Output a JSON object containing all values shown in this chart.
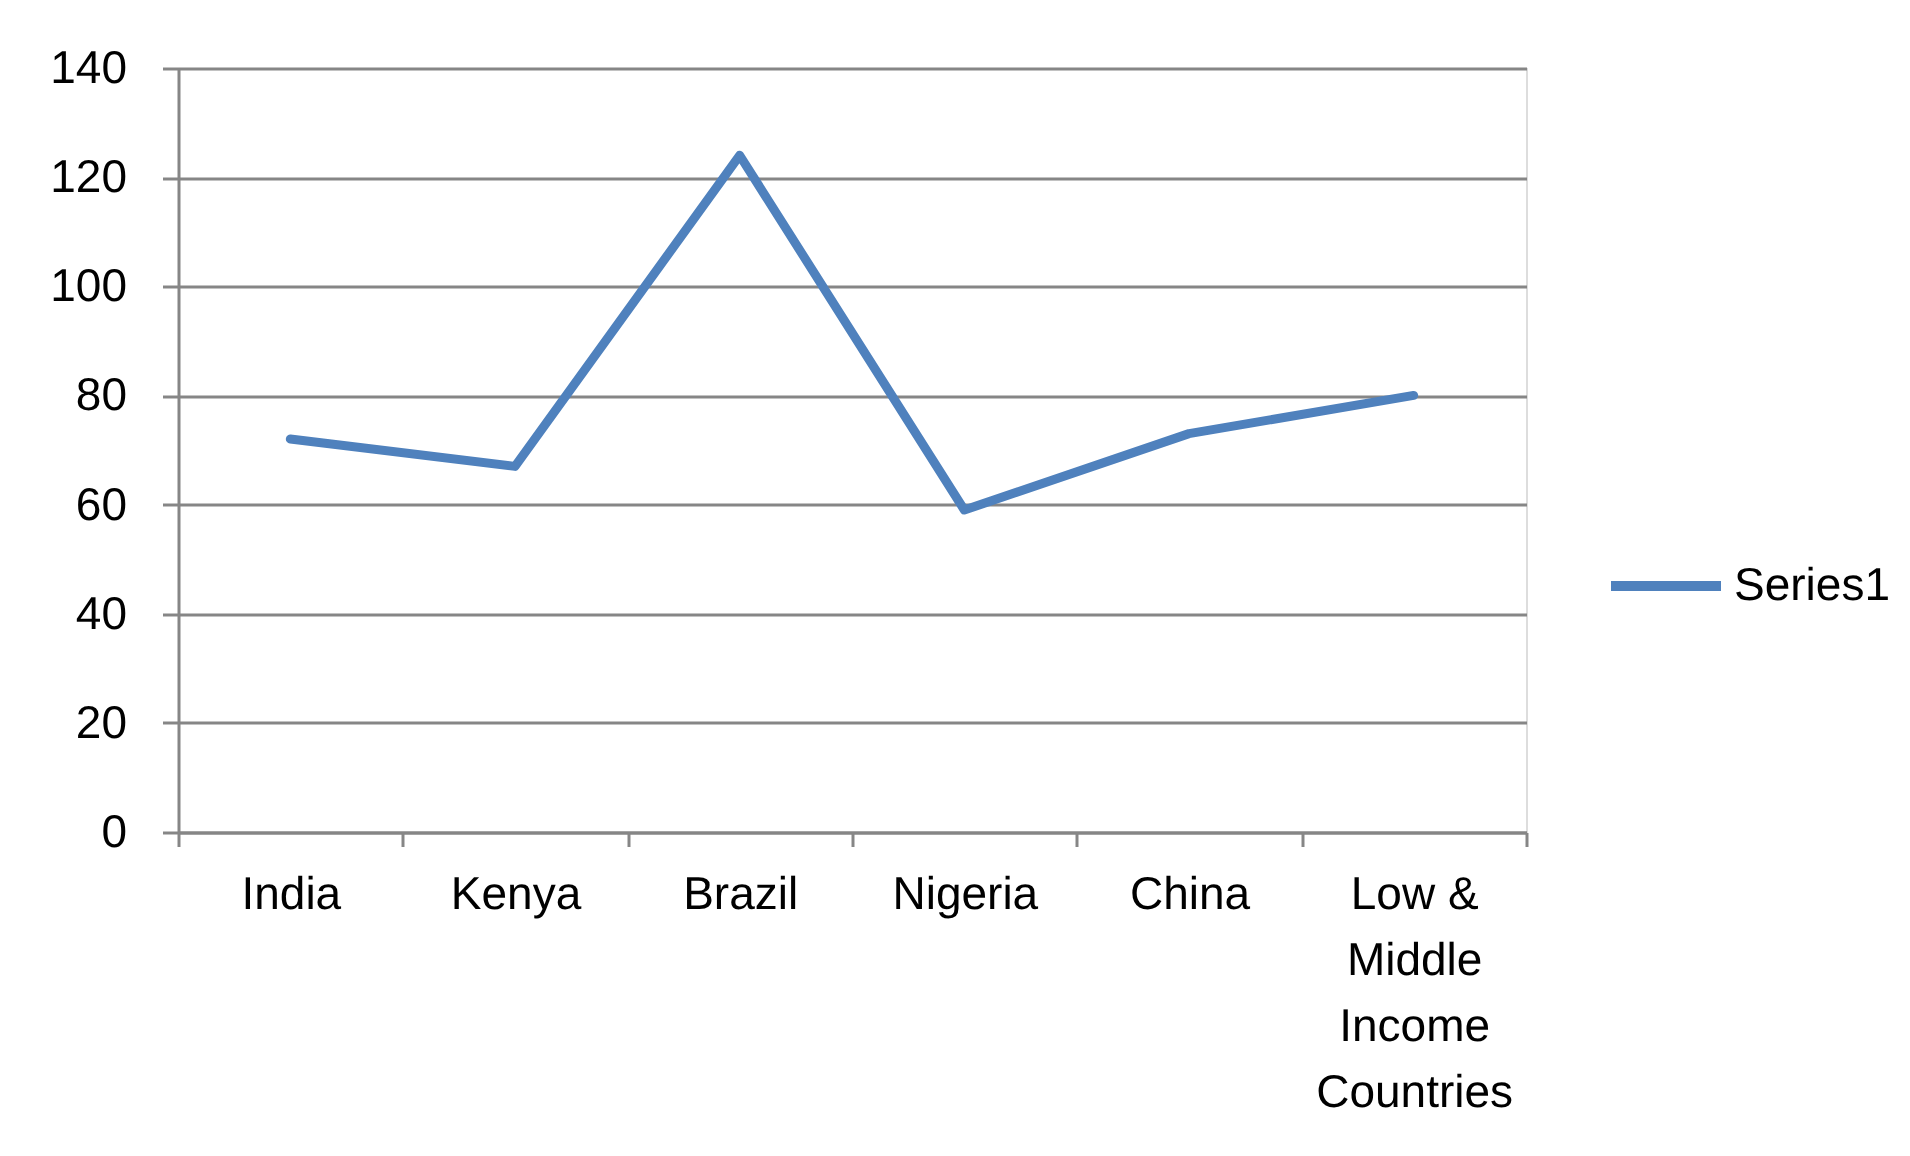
{
  "chart_data": {
    "type": "line",
    "categories": [
      "India",
      "Kenya",
      "Brazil",
      "Nigeria",
      "China",
      "Low & Middle Income Countries"
    ],
    "series": [
      {
        "name": "Series1",
        "color": "#4f81bd",
        "values": [
          72,
          67,
          124,
          59,
          73,
          80
        ]
      }
    ],
    "ylim": [
      0,
      140
    ],
    "yticks": [
      0,
      20,
      40,
      60,
      80,
      100,
      120,
      140
    ],
    "grid": "y",
    "legend": "right",
    "marker": "none"
  }
}
